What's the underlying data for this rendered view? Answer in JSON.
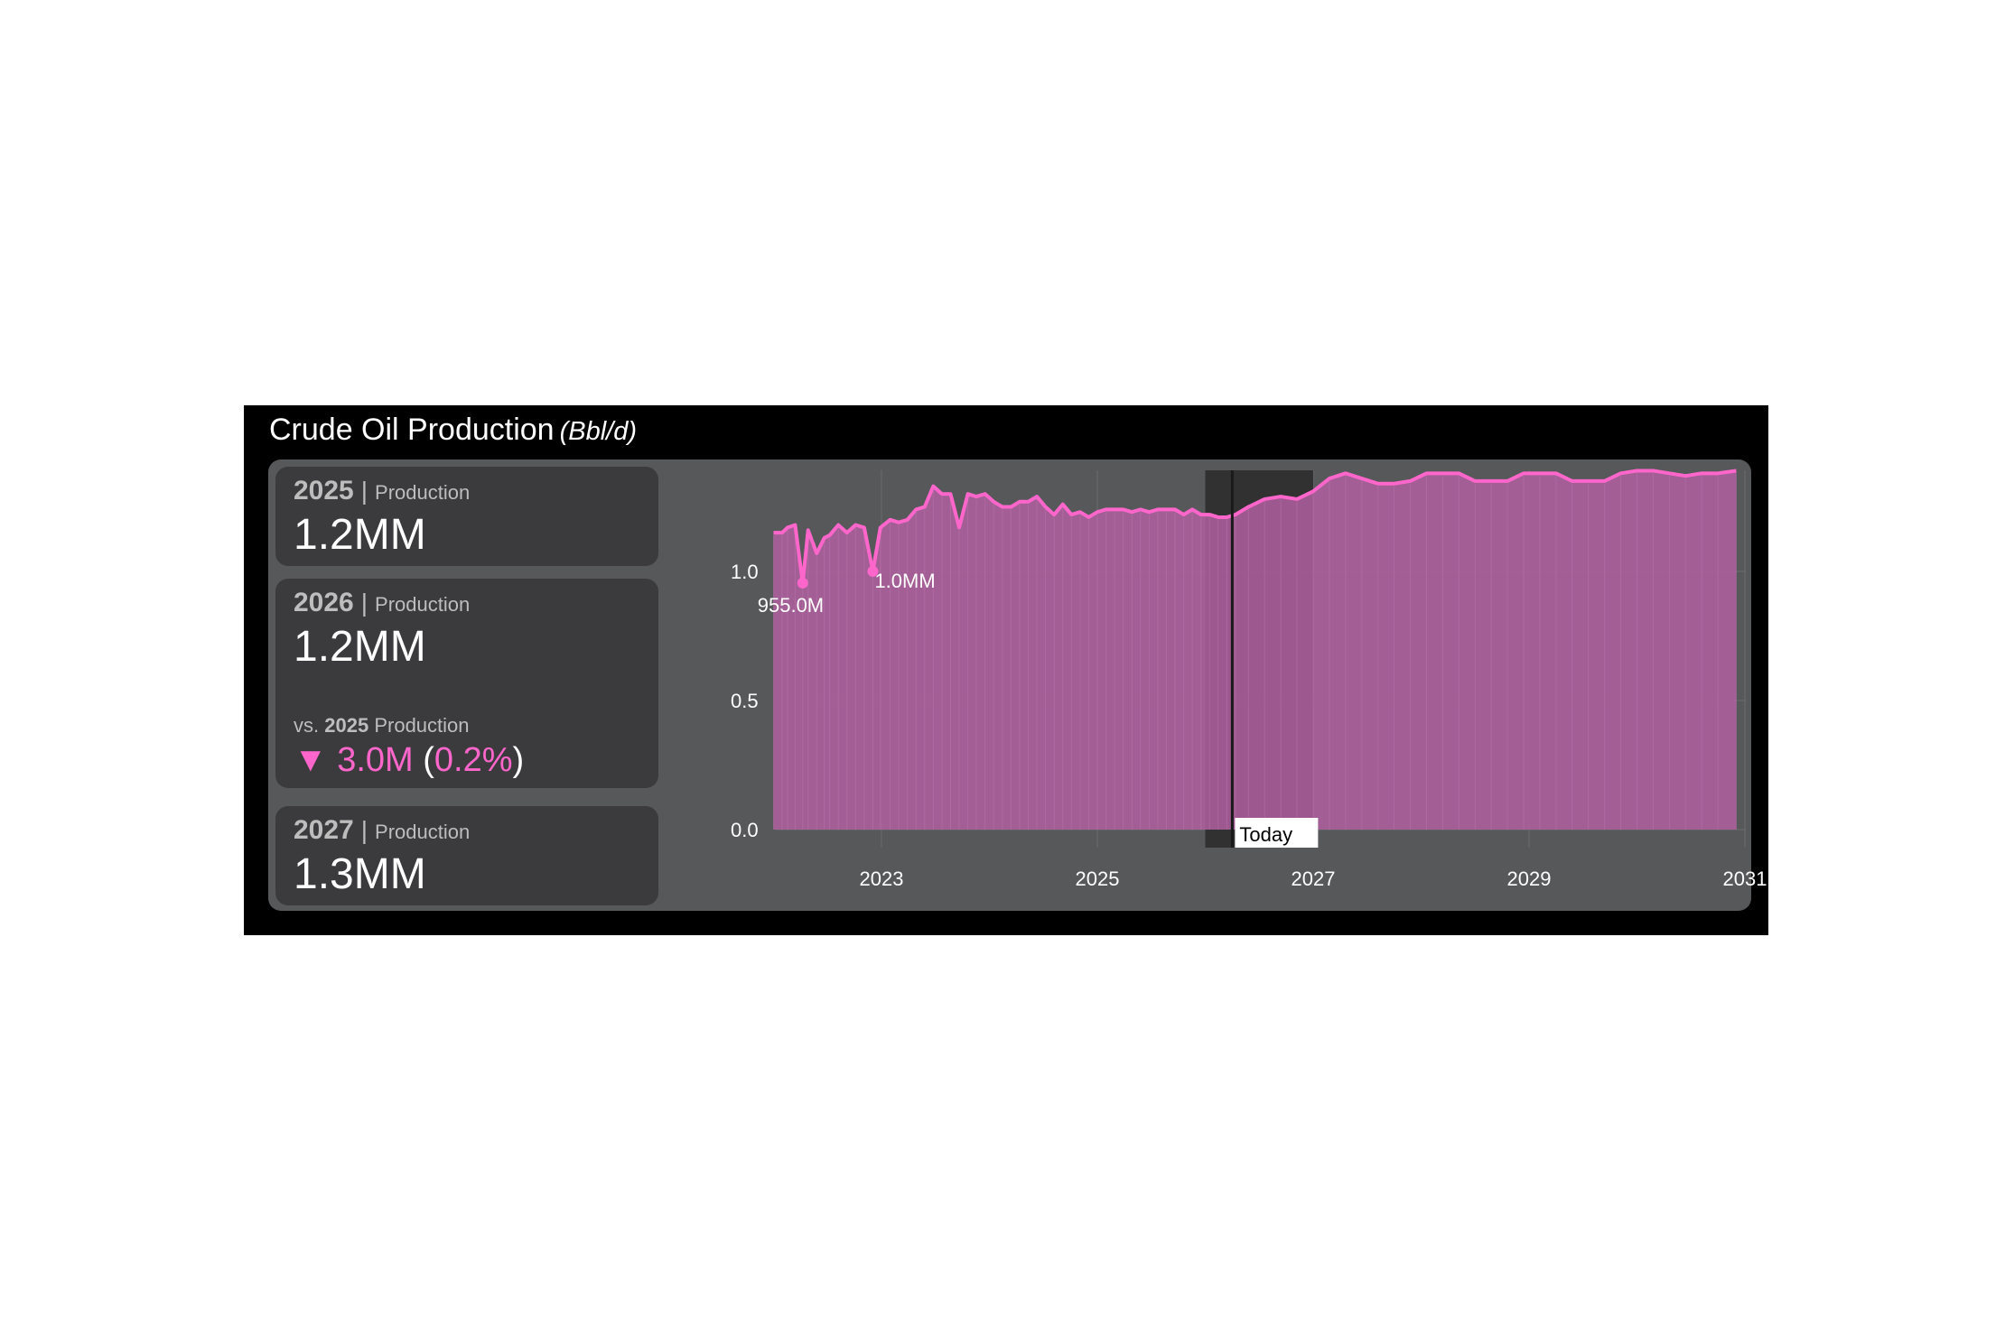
{
  "title": {
    "text": "Crude Oil Production",
    "unit": "(Bbl/d)"
  },
  "cards": [
    {
      "year": "2025",
      "sep": "|",
      "label": "Production",
      "value": "1.2MM"
    },
    {
      "year": "2026",
      "sep": "|",
      "label": "Production",
      "value": "1.2MM",
      "vs_prefix": "vs.",
      "vs_year": "2025",
      "vs_label": "Production",
      "delta_arrow": "▼",
      "delta_value": "3.0M",
      "delta_pct": "0.2%"
    },
    {
      "year": "2027",
      "sep": "|",
      "label": "Production",
      "value": "1.3MM"
    }
  ],
  "colors": {
    "series": "#ff66cc",
    "fill": "#b060a0",
    "panel_bg": "#000000",
    "plot_bg": "#57585a",
    "card_bg": "#3b3b3e",
    "delta": "#ff66cc"
  },
  "chart_data": {
    "type": "area",
    "title": "",
    "xlabel": "",
    "ylabel": "",
    "xlim": [
      2022.0,
      2031.0
    ],
    "ylim": [
      0.0,
      1.4
    ],
    "x_ticks": [
      "2023",
      "2025",
      "2027",
      "2029",
      "2031"
    ],
    "y_ticks": [
      "0.0",
      "0.5",
      "1.0"
    ],
    "grid": true,
    "legend": "none",
    "today_marker": {
      "x": 2026.25,
      "label": "Today"
    },
    "forecast_band": [
      2026.0,
      2027.0
    ],
    "annotations": [
      {
        "x": 2022.27,
        "y": 0.955,
        "text": "955.0M"
      },
      {
        "x": 2022.92,
        "y": 1.0,
        "text": "1.0MM"
      }
    ],
    "series": [
      {
        "x": [
          2022.0,
          2022.08,
          2022.13,
          2022.2,
          2022.27,
          2022.32,
          2022.4,
          2022.47,
          2022.52,
          2022.6,
          2022.68,
          2022.76,
          2022.84,
          2022.92,
          2022.99,
          2023.08,
          2023.16,
          2023.24,
          2023.32,
          2023.4,
          2023.48,
          2023.56,
          2023.64,
          2023.72,
          2023.8,
          2023.88,
          2023.96,
          2024.04,
          2024.12,
          2024.2,
          2024.28,
          2024.36,
          2024.44,
          2024.52,
          2024.6,
          2024.68,
          2024.76,
          2024.84,
          2024.92,
          2025.0,
          2025.08,
          2025.16,
          2025.24,
          2025.32,
          2025.4,
          2025.48,
          2025.56,
          2025.64,
          2025.72,
          2025.8,
          2025.88,
          2025.96,
          2026.04,
          2026.12,
          2026.2,
          2026.28,
          2026.4,
          2026.55,
          2026.7,
          2026.85,
          2027.0,
          2027.15,
          2027.3,
          2027.45,
          2027.6,
          2027.75,
          2027.9,
          2028.05,
          2028.2,
          2028.35,
          2028.5,
          2028.65,
          2028.8,
          2028.95,
          2029.1,
          2029.25,
          2029.4,
          2029.55,
          2029.7,
          2029.85,
          2030.0,
          2030.15,
          2030.3,
          2030.45,
          2030.6,
          2030.75,
          2030.92
        ],
        "values": [
          1.15,
          1.15,
          1.17,
          1.18,
          0.955,
          1.16,
          1.07,
          1.13,
          1.14,
          1.18,
          1.15,
          1.18,
          1.17,
          1.0,
          1.17,
          1.2,
          1.19,
          1.2,
          1.24,
          1.25,
          1.33,
          1.3,
          1.3,
          1.17,
          1.3,
          1.29,
          1.3,
          1.27,
          1.25,
          1.25,
          1.27,
          1.27,
          1.29,
          1.25,
          1.22,
          1.26,
          1.22,
          1.23,
          1.21,
          1.23,
          1.24,
          1.24,
          1.24,
          1.23,
          1.24,
          1.23,
          1.24,
          1.24,
          1.24,
          1.22,
          1.24,
          1.22,
          1.22,
          1.21,
          1.21,
          1.22,
          1.25,
          1.28,
          1.29,
          1.28,
          1.31,
          1.36,
          1.38,
          1.36,
          1.34,
          1.34,
          1.35,
          1.38,
          1.38,
          1.38,
          1.35,
          1.35,
          1.35,
          1.38,
          1.38,
          1.38,
          1.35,
          1.35,
          1.35,
          1.38,
          1.39,
          1.39,
          1.38,
          1.37,
          1.38,
          1.38,
          1.39
        ]
      }
    ]
  }
}
